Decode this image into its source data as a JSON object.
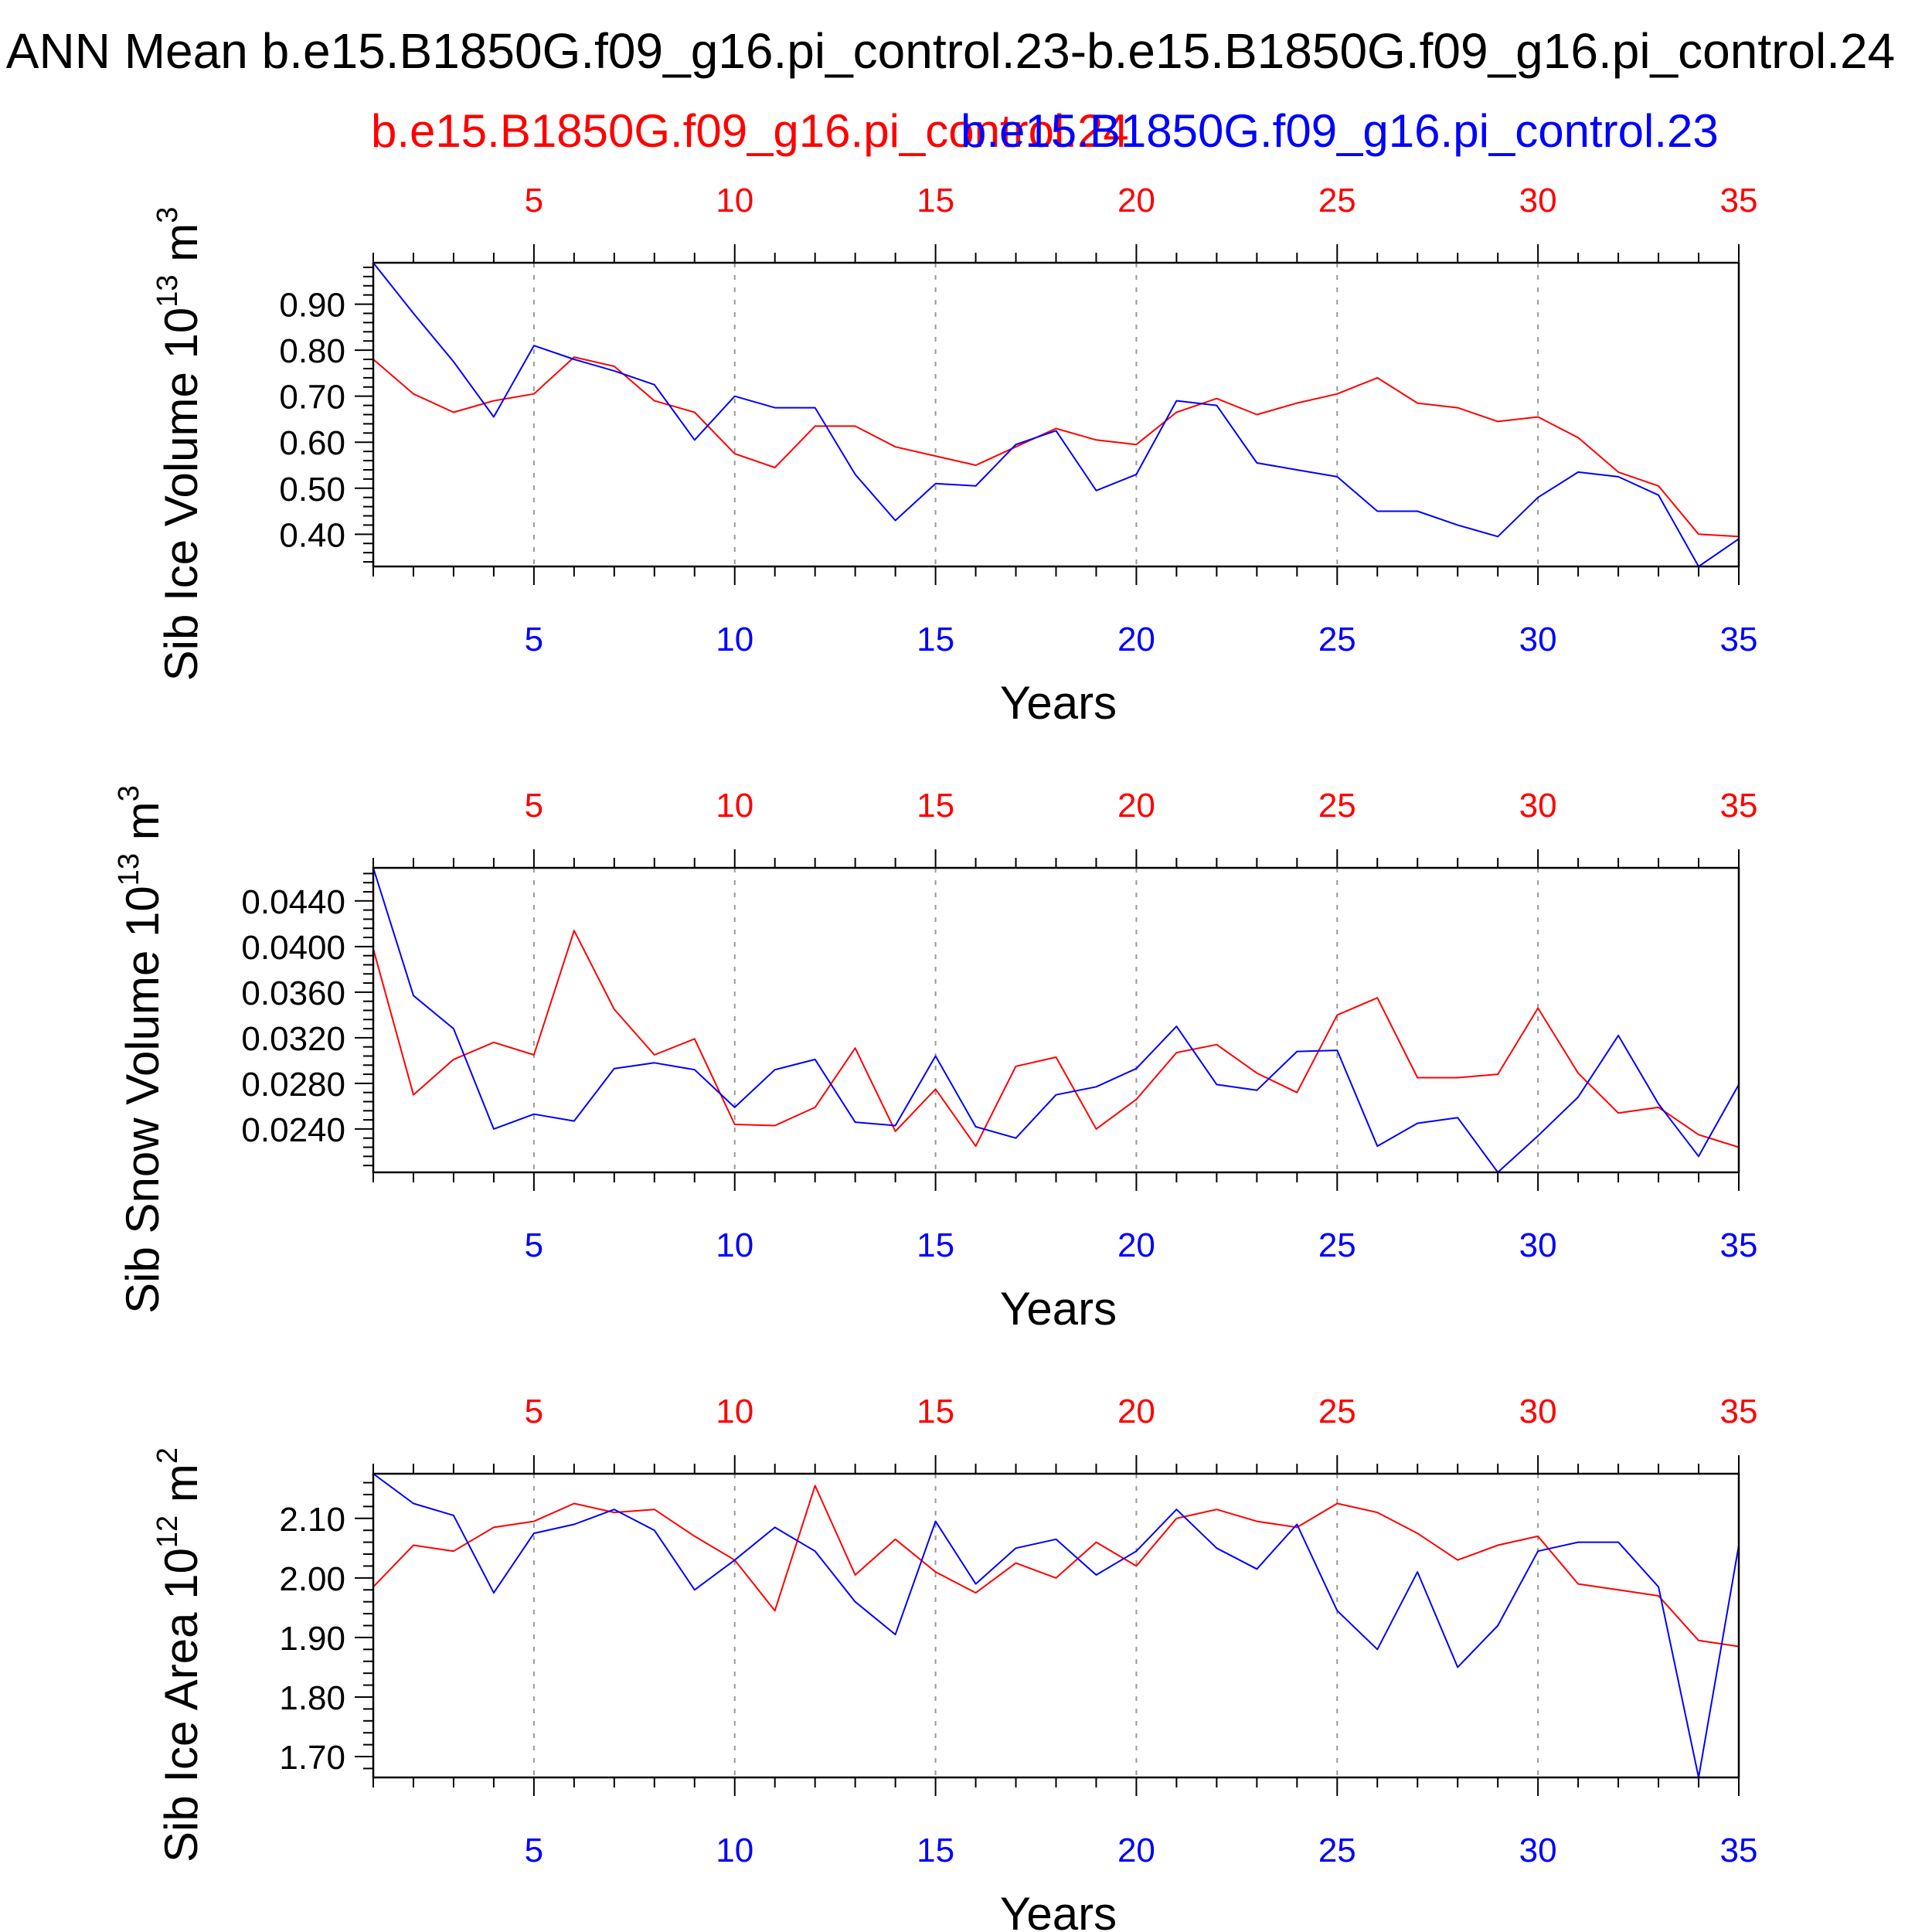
{
  "title": "ANN Mean b.e15.B1850G.f09_g16.pi_control.23-b.e15.B1850G.f09_g16.pi_control.24",
  "colors": {
    "case1": "#ff0000",
    "case2": "#0000ff",
    "axis": "#000000",
    "grid": "#999999"
  },
  "chart_data": [
    {
      "type": "line",
      "top_axis_label": "b.e15.B1850G.f09_g16.pi_control.24",
      "top_axis_label_2": "b.e15.B1850G.f09_g16.pi_control.23",
      "ylabel": "Sib Ice Volume 10",
      "ylabel_exp": "13",
      "ylabel_unit": " m",
      "ylabel_unit_exp": "3",
      "xlabel": "Years",
      "xlim": [
        1,
        35
      ],
      "ylim": [
        0.33,
        0.99
      ],
      "xticks": [
        5,
        10,
        15,
        20,
        25,
        30,
        35
      ],
      "yticks": [
        "0.90",
        "0.80",
        "0.70",
        "0.60",
        "0.50",
        "0.40"
      ],
      "series": [
        {
          "name": "b.e15.B1850G.f09_g16.pi_control.24",
          "color": "#ff0000",
          "x": [
            1,
            2,
            3,
            4,
            5,
            6,
            7,
            8,
            9,
            10,
            11,
            12,
            13,
            14,
            15,
            16,
            17,
            18,
            19,
            20,
            21,
            22,
            23,
            24,
            25,
            26,
            27,
            28,
            29,
            30,
            31,
            32,
            33,
            34,
            35
          ],
          "values": [
            0.78,
            0.705,
            0.665,
            0.69,
            0.705,
            0.785,
            0.765,
            0.69,
            0.665,
            0.575,
            0.545,
            0.635,
            0.635,
            0.59,
            0.57,
            0.55,
            0.59,
            0.63,
            0.605,
            0.595,
            0.665,
            0.695,
            0.66,
            0.685,
            0.705,
            0.74,
            0.685,
            0.675,
            0.645,
            0.655,
            0.61,
            0.535,
            0.505,
            0.4,
            0.395
          ]
        },
        {
          "name": "b.e15.B1850G.f09_g16.pi_control.23",
          "color": "#0000ff",
          "x": [
            1,
            2,
            3,
            4,
            5,
            6,
            7,
            8,
            9,
            10,
            11,
            12,
            13,
            14,
            15,
            16,
            17,
            18,
            19,
            20,
            21,
            22,
            23,
            24,
            25,
            26,
            27,
            28,
            29,
            30,
            31,
            32,
            33,
            34,
            35
          ],
          "values": [
            0.99,
            0.88,
            0.775,
            0.655,
            0.81,
            0.78,
            0.755,
            0.725,
            0.605,
            0.7,
            0.675,
            0.675,
            0.53,
            0.43,
            0.51,
            0.505,
            0.595,
            0.625,
            0.495,
            0.53,
            0.69,
            0.68,
            0.555,
            0.54,
            0.525,
            0.45,
            0.45,
            0.42,
            0.395,
            0.48,
            0.535,
            0.525,
            0.485,
            0.33,
            0.39
          ]
        }
      ]
    },
    {
      "type": "line",
      "ylabel": "Sib Snow Volume 10",
      "ylabel_exp": "13",
      "ylabel_unit": " m",
      "ylabel_unit_exp": "3",
      "xlabel": "Years",
      "xlim": [
        1,
        35
      ],
      "ylim": [
        0.0202,
        0.0469
      ],
      "xticks": [
        5,
        10,
        15,
        20,
        25,
        30,
        35
      ],
      "yticks": [
        "0.0440",
        "0.0400",
        "0.0360",
        "0.0320",
        "0.0280",
        "0.0240"
      ],
      "series": [
        {
          "name": "b.e15.B1850G.f09_g16.pi_control.24",
          "color": "#ff0000",
          "x": [
            1,
            2,
            3,
            4,
            5,
            6,
            7,
            8,
            9,
            10,
            11,
            12,
            13,
            14,
            15,
            16,
            17,
            18,
            19,
            20,
            21,
            22,
            23,
            24,
            25,
            26,
            27,
            28,
            29,
            30,
            31,
            32,
            33,
            34,
            35
          ],
          "values": [
            0.0398,
            0.027,
            0.0301,
            0.0316,
            0.0305,
            0.0414,
            0.0345,
            0.0305,
            0.0319,
            0.0244,
            0.0243,
            0.0259,
            0.0311,
            0.0238,
            0.0275,
            0.0225,
            0.0295,
            0.0303,
            0.024,
            0.0266,
            0.0307,
            0.0314,
            0.0289,
            0.0272,
            0.034,
            0.0355,
            0.0285,
            0.0285,
            0.0288,
            0.0346,
            0.0289,
            0.0254,
            0.0259,
            0.0235,
            0.0224
          ]
        },
        {
          "name": "b.e15.B1850G.f09_g16.pi_control.23",
          "color": "#0000ff",
          "x": [
            1,
            2,
            3,
            4,
            5,
            6,
            7,
            8,
            9,
            10,
            11,
            12,
            13,
            14,
            15,
            16,
            17,
            18,
            19,
            20,
            21,
            22,
            23,
            24,
            25,
            26,
            27,
            28,
            29,
            30,
            31,
            32,
            33,
            34,
            35
          ],
          "values": [
            0.0469,
            0.0357,
            0.0328,
            0.024,
            0.0253,
            0.0247,
            0.0293,
            0.0298,
            0.0292,
            0.0259,
            0.0292,
            0.0301,
            0.0246,
            0.0243,
            0.0304,
            0.0242,
            0.0232,
            0.027,
            0.0277,
            0.0293,
            0.033,
            0.0279,
            0.0274,
            0.0308,
            0.0309,
            0.0225,
            0.0245,
            0.025,
            0.0202,
            0.0234,
            0.0268,
            0.0322,
            0.0262,
            0.0216,
            0.0279
          ]
        }
      ]
    },
    {
      "type": "line",
      "ylabel": "Sib Ice Area 10",
      "ylabel_exp": "12",
      "ylabel_unit": " m",
      "ylabel_unit_exp": "2",
      "xlabel": "Years",
      "xlim": [
        1,
        35
      ],
      "ylim": [
        1.665,
        2.175
      ],
      "xticks": [
        5,
        10,
        15,
        20,
        25,
        30,
        35
      ],
      "yticks": [
        "2.10",
        "2.00",
        "1.90",
        "1.80",
        "1.70"
      ],
      "series": [
        {
          "name": "b.e15.B1850G.f09_g16.pi_control.24",
          "color": "#ff0000",
          "x": [
            1,
            2,
            3,
            4,
            5,
            6,
            7,
            8,
            9,
            10,
            11,
            12,
            13,
            14,
            15,
            16,
            17,
            18,
            19,
            20,
            21,
            22,
            23,
            24,
            25,
            26,
            27,
            28,
            29,
            30,
            31,
            32,
            33,
            34,
            35
          ],
          "values": [
            1.985,
            2.055,
            2.045,
            2.085,
            2.095,
            2.125,
            2.11,
            2.115,
            2.07,
            2.03,
            1.945,
            2.155,
            2.005,
            2.065,
            2.01,
            1.975,
            2.025,
            2.0,
            2.06,
            2.02,
            2.1,
            2.115,
            2.095,
            2.085,
            2.125,
            2.11,
            2.075,
            2.03,
            2.055,
            2.07,
            1.99,
            1.98,
            1.97,
            1.895,
            1.885
          ]
        },
        {
          "name": "b.e15.B1850G.f09_g16.pi_control.23",
          "color": "#0000ff",
          "x": [
            1,
            2,
            3,
            4,
            5,
            6,
            7,
            8,
            9,
            10,
            11,
            12,
            13,
            14,
            15,
            16,
            17,
            18,
            19,
            20,
            21,
            22,
            23,
            24,
            25,
            26,
            27,
            28,
            29,
            30,
            31,
            32,
            33,
            34,
            35
          ],
          "values": [
            2.175,
            2.125,
            2.105,
            1.975,
            2.075,
            2.09,
            2.115,
            2.08,
            1.98,
            2.03,
            2.085,
            2.045,
            1.96,
            1.905,
            2.095,
            1.99,
            2.05,
            2.065,
            2.005,
            2.045,
            2.115,
            2.05,
            2.015,
            2.09,
            1.945,
            1.88,
            2.01,
            1.85,
            1.92,
            2.045,
            2.06,
            2.06,
            1.985,
            1.665,
            2.055
          ]
        }
      ]
    }
  ]
}
